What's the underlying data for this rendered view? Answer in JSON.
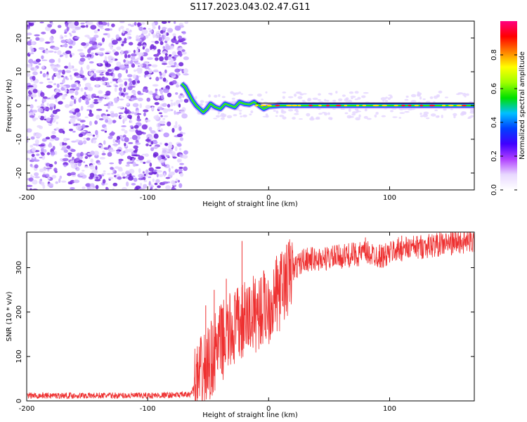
{
  "title": "S117.2023.043.02.47.G11",
  "chart_data": [
    {
      "type": "heatmap",
      "xlabel": "Height of straight line (km)",
      "ylabel": "Frequency (Hz)",
      "xlim": [
        -200,
        170
      ],
      "ylim": [
        -25,
        25
      ],
      "xticks": [
        -200,
        -100,
        0,
        100
      ],
      "yticks": [
        -20,
        -10,
        0,
        10,
        20
      ],
      "noise_region": {
        "x": [
          -200,
          -68
        ],
        "y": [
          -25,
          25
        ]
      },
      "tone_trace": [
        {
          "x": -72,
          "y": 6.5
        },
        {
          "x": -69,
          "y": 5.5
        },
        {
          "x": -66,
          "y": 3.5
        },
        {
          "x": -63,
          "y": 1.5
        },
        {
          "x": -60,
          "y": 0
        },
        {
          "x": -57,
          "y": -1
        },
        {
          "x": -54,
          "y": -2
        },
        {
          "x": -51,
          "y": -1
        },
        {
          "x": -48,
          "y": 0.5
        },
        {
          "x": -44,
          "y": -0.5
        },
        {
          "x": -40,
          "y": -1
        },
        {
          "x": -36,
          "y": 0.5
        },
        {
          "x": -32,
          "y": 0
        },
        {
          "x": -28,
          "y": -0.5
        },
        {
          "x": -24,
          "y": 1
        },
        {
          "x": -20,
          "y": 0.5
        },
        {
          "x": -16,
          "y": 0.3
        },
        {
          "x": -12,
          "y": 1
        },
        {
          "x": -8,
          "y": 0
        },
        {
          "x": -4,
          "y": -1
        },
        {
          "x": 0,
          "y": -0.3
        },
        {
          "x": 10,
          "y": 0
        },
        {
          "x": 40,
          "y": 0
        },
        {
          "x": 80,
          "y": 0
        },
        {
          "x": 120,
          "y": 0
        },
        {
          "x": 170,
          "y": 0
        }
      ],
      "colorbar": {
        "label": "Normalized spectral amplitude",
        "ticks": [
          0.0,
          0.2,
          0.4,
          0.6,
          0.8
        ],
        "tick_labels": [
          "0.0",
          "0.2",
          "0.4",
          "0.6",
          "0.8"
        ],
        "colors": [
          "#ffffff",
          "#e8d8ff",
          "#b040ff",
          "#4000ff",
          "#0040ff",
          "#00c0ff",
          "#00e000",
          "#a0ff00",
          "#ffff00",
          "#ff8000",
          "#ff0000",
          "#ff0080"
        ]
      },
      "grid": false
    },
    {
      "type": "line",
      "xlabel": "Height of straight line (km)",
      "ylabel": "SNR (10 * v/v)",
      "xlim": [
        -200,
        170
      ],
      "ylim": [
        0,
        380
      ],
      "xticks": [
        -200,
        -100,
        0,
        100
      ],
      "yticks": [
        0,
        100,
        200,
        300
      ],
      "series": [
        {
          "color": "#ee3030",
          "envelope": [
            {
              "x": -200,
              "y": 12
            },
            {
              "x": -150,
              "y": 12
            },
            {
              "x": -100,
              "y": 12
            },
            {
              "x": -65,
              "y": 14
            },
            {
              "x": -60,
              "y": 40
            },
            {
              "x": -50,
              "y": 80
            },
            {
              "x": -40,
              "y": 130
            },
            {
              "x": -30,
              "y": 160
            },
            {
              "x": -20,
              "y": 180
            },
            {
              "x": -10,
              "y": 200
            },
            {
              "x": 0,
              "y": 215
            },
            {
              "x": 10,
              "y": 250
            },
            {
              "x": 20,
              "y": 295
            },
            {
              "x": 30,
              "y": 320
            },
            {
              "x": 40,
              "y": 318
            },
            {
              "x": 60,
              "y": 325
            },
            {
              "x": 80,
              "y": 333
            },
            {
              "x": 95,
              "y": 325
            },
            {
              "x": 105,
              "y": 340
            },
            {
              "x": 120,
              "y": 345
            },
            {
              "x": 140,
              "y": 352
            },
            {
              "x": 160,
              "y": 358
            },
            {
              "x": 170,
              "y": 360
            }
          ],
          "peaks": [
            {
              "x": -22,
              "y": 360
            },
            {
              "x": -35,
              "y": 275
            },
            {
              "x": -52,
              "y": 215
            },
            {
              "x": -45,
              "y": 250
            },
            {
              "x": -10,
              "y": 230
            },
            {
              "x": 80,
              "y": 368
            },
            {
              "x": 110,
              "y": 372
            }
          ]
        }
      ],
      "grid": false
    }
  ]
}
